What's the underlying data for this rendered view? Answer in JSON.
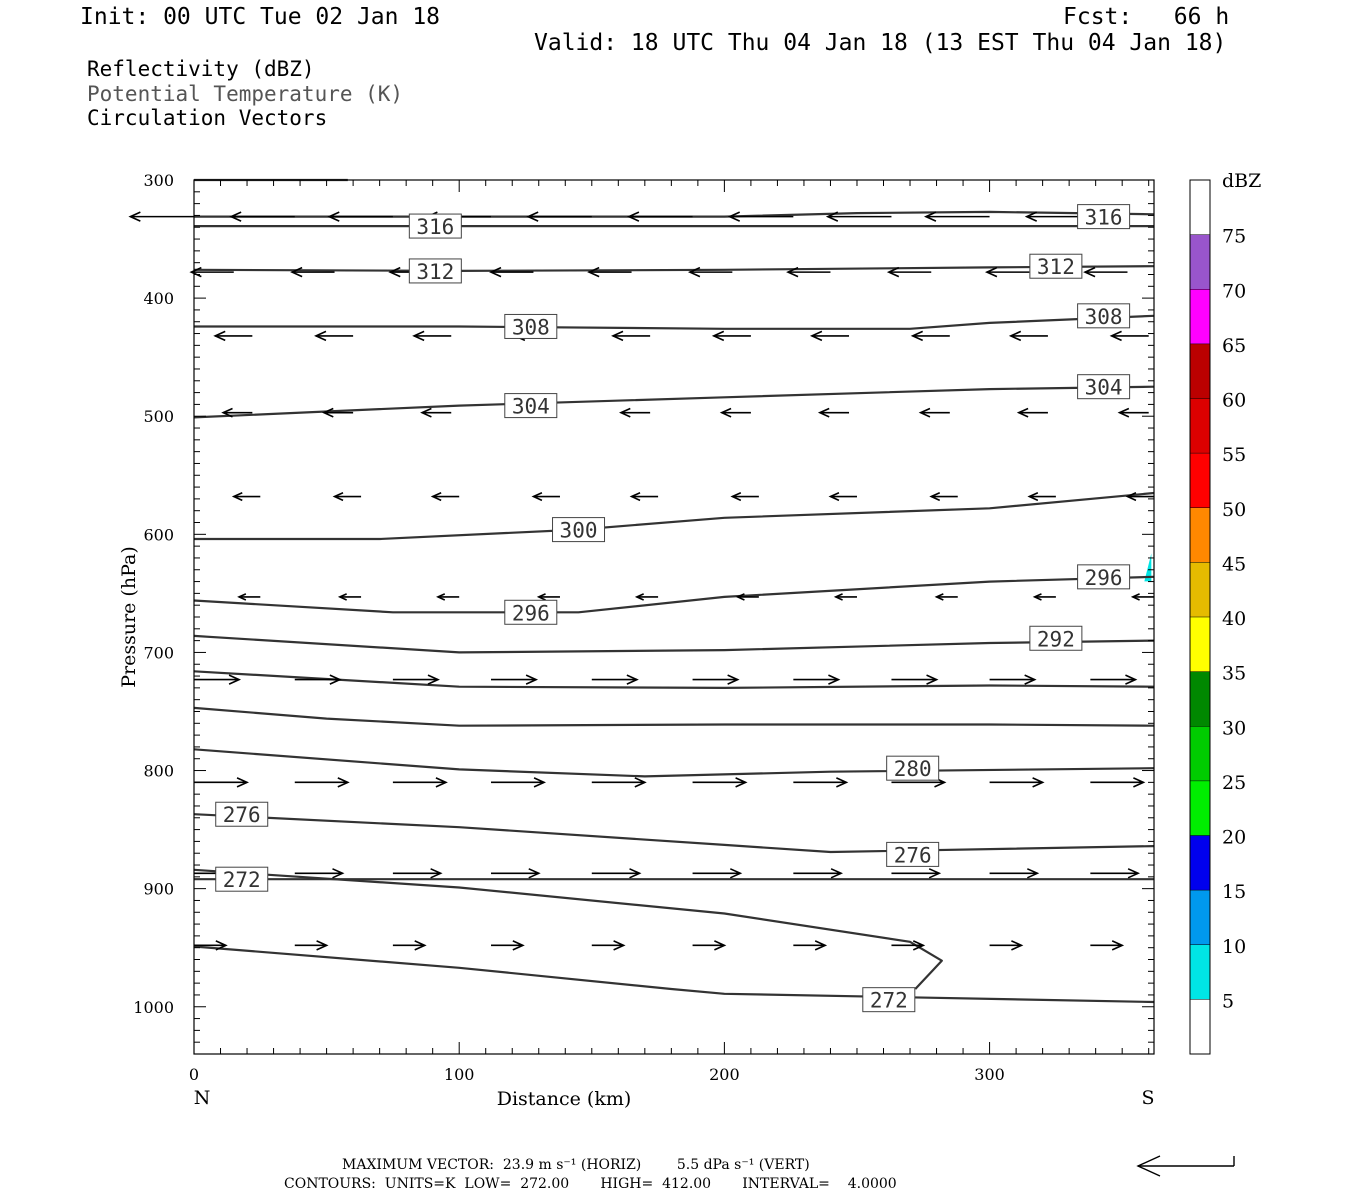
{
  "header": {
    "init": "Init: 00 UTC Tue 02 Jan 18",
    "fcst": "Fcst:   66 h",
    "valid": "Valid: 18 UTC Thu 04 Jan 18 (13 EST Thu 04 Jan 18)"
  },
  "fields": {
    "field1": "Reflectivity (dBZ)",
    "field2": "Potential Temperature (K)",
    "field3": "Circulation Vectors",
    "field2_color": "#555555"
  },
  "footer": {
    "max_vector": "MAXIMUM VECTOR:  23.9 m s⁻¹ (HORIZ)        5.5 dPa s⁻¹ (VERT)",
    "contours": "CONTOURS:  UNITS=K  LOW=  272.00       HIGH=  412.00       INTERVAL=    4.0000"
  },
  "chart_data": {
    "type": "cross-section",
    "xlabel": "Distance (km)",
    "ylabel": "Pressure (hPa)",
    "xlim": [
      0,
      362
    ],
    "ylim": [
      1040,
      300
    ],
    "x_ticks": [
      0,
      100,
      200,
      300
    ],
    "y_ticks": [
      300,
      400,
      500,
      600,
      700,
      800,
      900,
      1000
    ],
    "x_end_labels": {
      "left": "N",
      "right": "S"
    },
    "contour_color": "#333333",
    "contour_labels": [
      {
        "text": "316",
        "x": 91,
        "p": 339
      },
      {
        "text": "316",
        "x": 343,
        "p": 331
      },
      {
        "text": "312",
        "x": 91,
        "p": 377
      },
      {
        "text": "312",
        "x": 325,
        "p": 373
      },
      {
        "text": "308",
        "x": 127,
        "p": 424
      },
      {
        "text": "308",
        "x": 343,
        "p": 415
      },
      {
        "text": "304",
        "x": 127,
        "p": 491
      },
      {
        "text": "304",
        "x": 343,
        "p": 475
      },
      {
        "text": "300",
        "x": 145,
        "p": 596
      },
      {
        "text": "296",
        "x": 127,
        "p": 666
      },
      {
        "text": "296",
        "x": 343,
        "p": 636
      },
      {
        "text": "292",
        "x": 325,
        "p": 688
      },
      {
        "text": "280",
        "x": 271,
        "p": 798
      },
      {
        "text": "276",
        "x": 18,
        "p": 837
      },
      {
        "text": "276",
        "x": 271,
        "p": 871
      },
      {
        "text": "272",
        "x": 18,
        "p": 892
      },
      {
        "text": "272",
        "x": 262,
        "p": 994
      }
    ],
    "contours": [
      [
        [
          0,
          300
        ],
        [
          58,
          300
        ]
      ],
      [
        [
          0,
          339
        ],
        [
          100,
          339
        ],
        [
          200,
          339
        ],
        [
          362,
          339
        ]
      ],
      [
        [
          0,
          331
        ],
        [
          200,
          331
        ],
        [
          250,
          328
        ],
        [
          300,
          327
        ],
        [
          362,
          329
        ]
      ],
      [
        [
          0,
          376
        ],
        [
          100,
          377
        ],
        [
          200,
          376
        ],
        [
          300,
          374
        ],
        [
          362,
          373
        ]
      ],
      [
        [
          0,
          424
        ],
        [
          100,
          424
        ],
        [
          200,
          426
        ],
        [
          270,
          426
        ],
        [
          300,
          421
        ],
        [
          362,
          415
        ]
      ],
      [
        [
          0,
          501
        ],
        [
          100,
          491
        ],
        [
          200,
          484
        ],
        [
          300,
          477
        ],
        [
          362,
          475
        ]
      ],
      [
        [
          0,
          604
        ],
        [
          70,
          604
        ],
        [
          145,
          596
        ],
        [
          200,
          586
        ],
        [
          300,
          578
        ],
        [
          362,
          565
        ]
      ],
      [
        [
          0,
          656
        ],
        [
          75,
          666
        ],
        [
          145,
          666
        ],
        [
          200,
          653
        ],
        [
          300,
          640
        ],
        [
          362,
          636
        ]
      ],
      [
        [
          0,
          686
        ],
        [
          100,
          700
        ],
        [
          200,
          698
        ],
        [
          300,
          692
        ],
        [
          362,
          690
        ]
      ],
      [
        [
          0,
          716
        ],
        [
          100,
          729
        ],
        [
          200,
          730
        ],
        [
          300,
          728
        ],
        [
          362,
          729
        ]
      ],
      [
        [
          0,
          747
        ],
        [
          50,
          756
        ],
        [
          100,
          762
        ],
        [
          200,
          761
        ],
        [
          300,
          761
        ],
        [
          362,
          762
        ]
      ],
      [
        [
          0,
          782
        ],
        [
          100,
          799
        ],
        [
          170,
          805
        ],
        [
          240,
          801
        ],
        [
          362,
          798
        ]
      ],
      [
        [
          0,
          837
        ],
        [
          100,
          848
        ],
        [
          200,
          863
        ],
        [
          240,
          869
        ],
        [
          362,
          864
        ]
      ],
      [
        [
          0,
          884
        ],
        [
          100,
          899
        ],
        [
          200,
          921
        ],
        [
          270,
          945
        ],
        [
          282,
          961
        ],
        [
          272,
          985
        ]
      ],
      [
        [
          0,
          892
        ],
        [
          362,
          892
        ]
      ],
      [
        [
          0,
          949
        ],
        [
          100,
          967
        ],
        [
          180,
          985
        ],
        [
          200,
          989
        ],
        [
          362,
          996
        ]
      ]
    ],
    "vectors": [
      {
        "p": 331,
        "x": [
          0,
          38,
          75,
          112,
          150,
          188,
          226,
          263,
          300,
          338
        ],
        "dx": -24,
        "dy": 0
      },
      {
        "p": 378,
        "x": [
          15,
          53,
          90,
          128,
          165,
          203,
          240,
          278,
          315,
          352
        ],
        "dx": -16,
        "dy": 0
      },
      {
        "p": 432,
        "x": [
          22,
          60,
          97,
          135,
          172,
          210,
          247,
          285,
          322,
          360
        ],
        "dx": -14,
        "dy": 0
      },
      {
        "p": 497,
        "x": [
          22,
          60,
          97,
          135,
          172,
          210,
          247,
          285,
          322,
          360
        ],
        "dx": -11,
        "dy": 0
      },
      {
        "p": 568,
        "x": [
          25,
          63,
          100,
          138,
          175,
          213,
          250,
          288,
          325,
          362
        ],
        "dx": -10,
        "dy": 0
      },
      {
        "p": 653,
        "x": [
          25,
          63,
          100,
          138,
          175,
          213,
          250,
          288,
          325,
          362
        ],
        "dx": -8,
        "dy": 0
      },
      {
        "p": 723,
        "x": [
          0,
          38,
          75,
          112,
          150,
          188,
          226,
          263,
          300,
          338
        ],
        "dx": 17,
        "dy": 0
      },
      {
        "p": 810,
        "x": [
          0,
          38,
          75,
          112,
          150,
          188,
          226,
          263,
          300,
          338
        ],
        "dx": 20,
        "dy": 0
      },
      {
        "p": 887,
        "x": [
          0,
          38,
          75,
          112,
          150,
          188,
          226,
          263,
          300,
          338
        ],
        "dx": 18,
        "dy": 0
      },
      {
        "p": 948,
        "x": [
          0,
          38,
          75,
          112,
          150,
          188,
          226,
          263,
          300,
          338
        ],
        "dx": 12,
        "dy": 0
      }
    ],
    "colorbar": {
      "title": "dBZ",
      "levels": [
        5,
        10,
        15,
        20,
        25,
        30,
        35,
        40,
        45,
        50,
        55,
        60,
        65,
        70,
        75
      ],
      "colors": [
        "#00e5e5",
        "#0099ee",
        "#0000ee",
        "#00ee00",
        "#00cc00",
        "#008800",
        "#ffff00",
        "#e5bb00",
        "#ff8800",
        "#ff0000",
        "#dd0000",
        "#bb0000",
        "#ff00ff",
        "#9955cc",
        "#ffffff"
      ]
    },
    "reflectivity_patches": [
      {
        "level": 5,
        "x": 361,
        "p": 628
      }
    ],
    "reference_vector": "max-vector-arrow"
  }
}
